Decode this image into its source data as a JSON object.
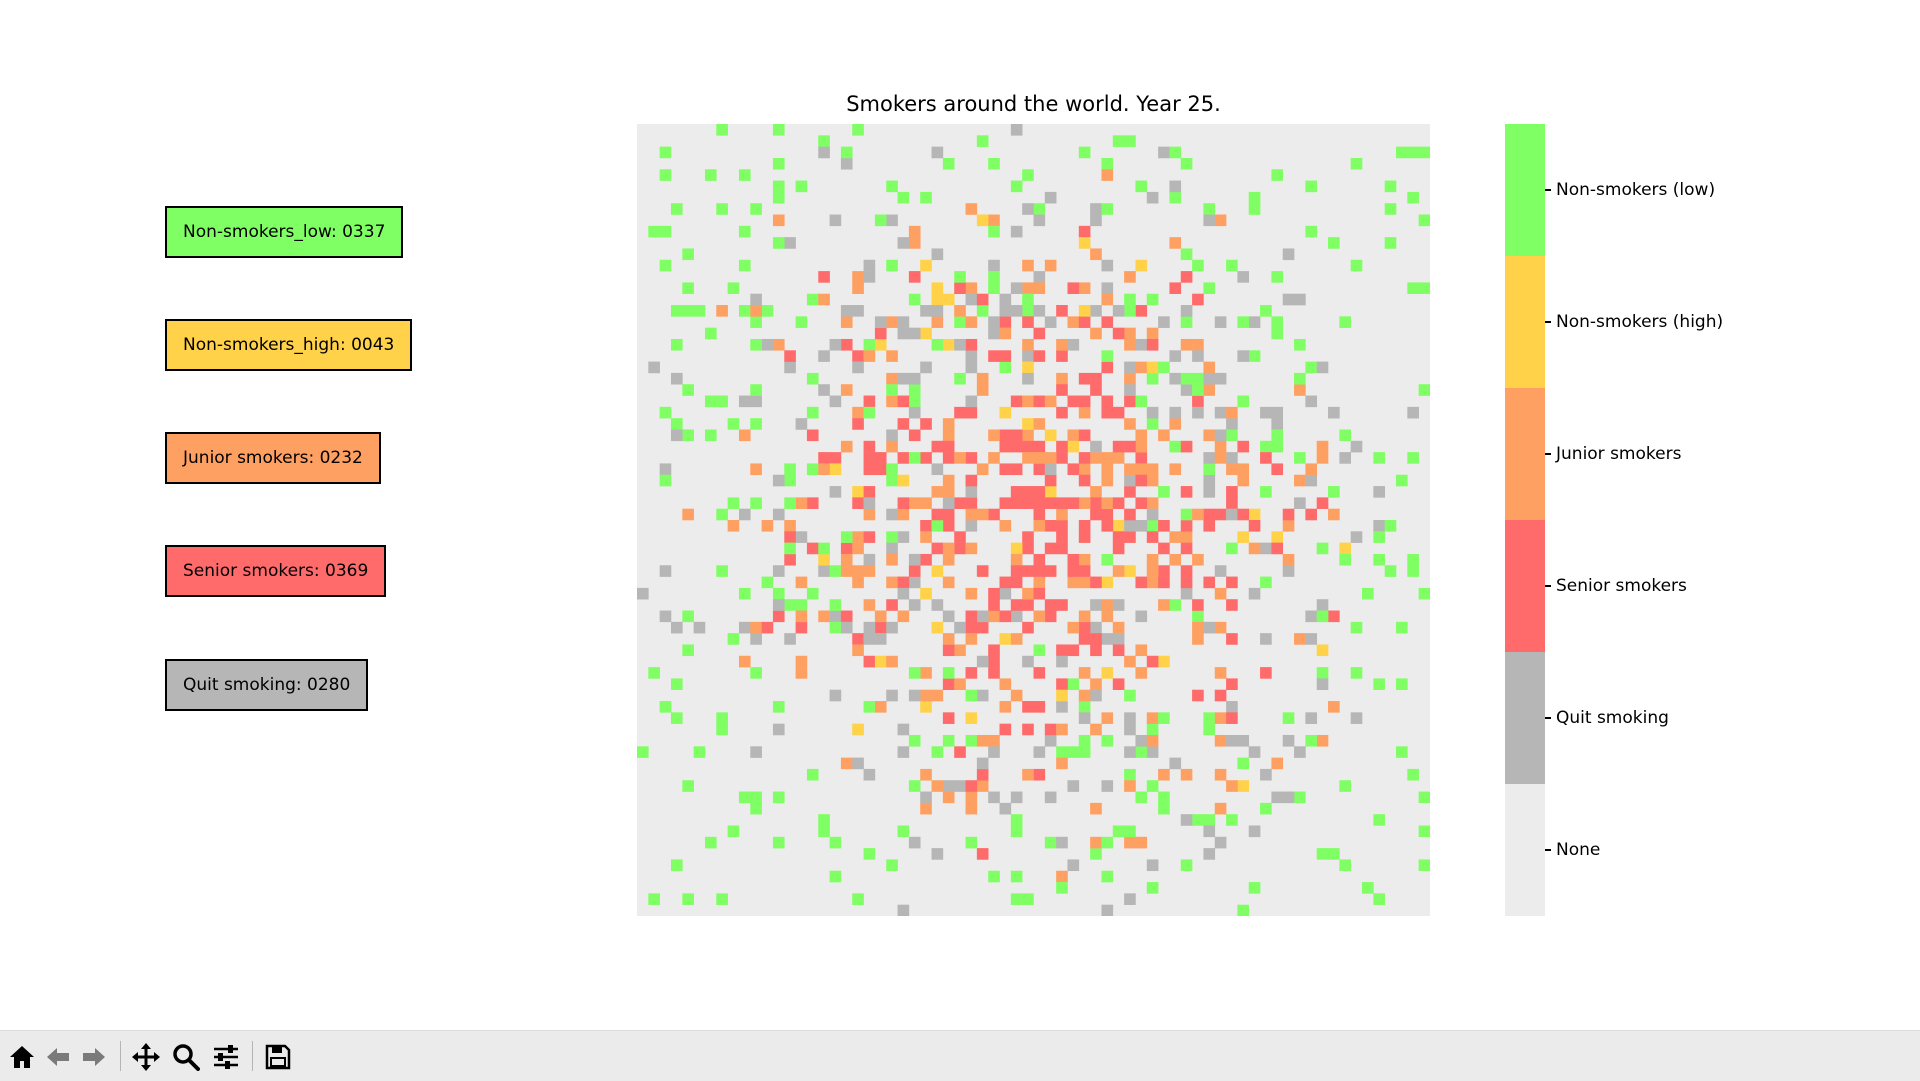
{
  "chart_data": {
    "type": "heatmap",
    "title": "Smokers around the world. Year 25.",
    "grid_size": 70,
    "categories": [
      "None",
      "Quit smoking",
      "Senior smokers",
      "Junior smokers",
      "Non-smokers (high)",
      "Non-smokers (low)"
    ],
    "colors": {
      "None": "#ececec",
      "Quit smoking": "#b6b6b6",
      "Senior smokers": "#ff6b6b",
      "Junior smokers": "#ffa063",
      "Non-smokers (high)": "#ffd24a",
      "Non-smokers (low)": "#80ff64"
    },
    "counts": {
      "Non-smokers (low)": 337,
      "Non-smokers (high)": 43,
      "Junior smokers": 232,
      "Senior smokers": 369,
      "Quit smoking": 280
    },
    "colorbar_labels_top_to_bottom": [
      "Non-smokers (low)",
      "Non-smokers (high)",
      "Junior smokers",
      "Senior smokers",
      "Quit smoking",
      "None"
    ]
  },
  "legend": [
    {
      "label": "Non-smokers_low: 0337",
      "color": "#80ff64"
    },
    {
      "label": "Non-smokers_high: 0043",
      "color": "#ffd24a"
    },
    {
      "label": "Junior smokers: 0232",
      "color": "#ffa063"
    },
    {
      "label": "Senior smokers: 0369",
      "color": "#ff6b6b"
    },
    {
      "label": "Quit smoking: 0280",
      "color": "#b6b6b6"
    }
  ],
  "toolbar": {
    "buttons": [
      "home-icon",
      "back-arrow-icon",
      "forward-arrow-icon",
      "pan-icon",
      "zoom-icon",
      "configure-subplots-icon",
      "save-icon"
    ]
  }
}
